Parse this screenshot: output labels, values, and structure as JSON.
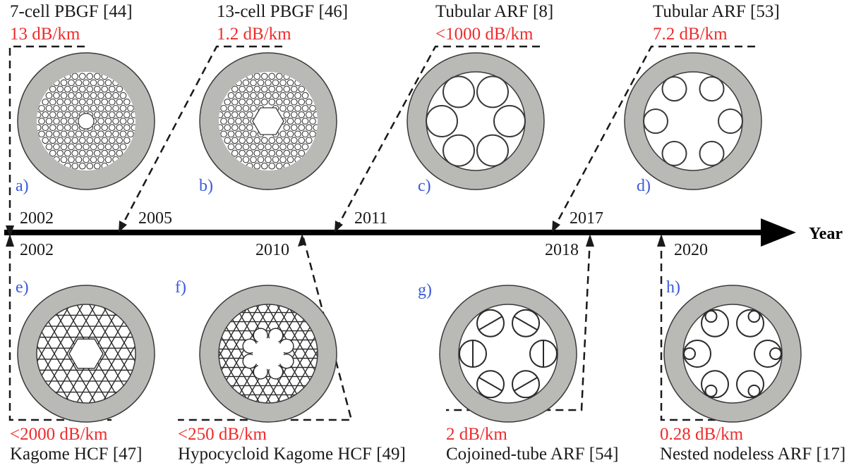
{
  "colors": {
    "cladding": "#b9b9b6",
    "outline": "#3a3a3a",
    "loss": "#ee2b2b",
    "panel": "#3b5bd9",
    "text": "#1a1a1a",
    "axis": "#000000"
  },
  "axis_label": "Year",
  "top": [
    {
      "title": "7-cell PBGF [44]",
      "loss": "13 dB/km",
      "panel": "a)",
      "year": "2002",
      "structure": "7-cell-pbgf"
    },
    {
      "title": "13-cell PBGF [46]",
      "loss": "1.2 dB/km",
      "panel": "b)",
      "year": "2005",
      "structure": "13-cell-pbgf"
    },
    {
      "title": "Tubular ARF [8]",
      "loss": "<1000 dB/km",
      "panel": "c)",
      "year": "2011",
      "structure": "tubular-arf-touching"
    },
    {
      "title": "Tubular ARF [53]",
      "loss": "7.2 dB/km",
      "panel": "d)",
      "year": "2017",
      "structure": "tubular-arf-nodeless"
    }
  ],
  "bottom": [
    {
      "title": "Kagome HCF [47]",
      "loss": "<2000 dB/km",
      "panel": "e)",
      "year": "2002",
      "structure": "kagome"
    },
    {
      "title": "Hypocycloid Kagome HCF [49]",
      "loss": "<250 dB/km",
      "panel": "f)",
      "year": "2010",
      "structure": "hypocycloid-kagome"
    },
    {
      "title": "Cojoined-tube ARF [54]",
      "loss": "2 dB/km",
      "panel": "g)",
      "year": "2018",
      "structure": "cojoined-tube"
    },
    {
      "title": "Nested nodeless ARF [17]",
      "loss": "0.28 dB/km",
      "panel": "h)",
      "year": "2020",
      "structure": "nested-nodeless"
    }
  ]
}
